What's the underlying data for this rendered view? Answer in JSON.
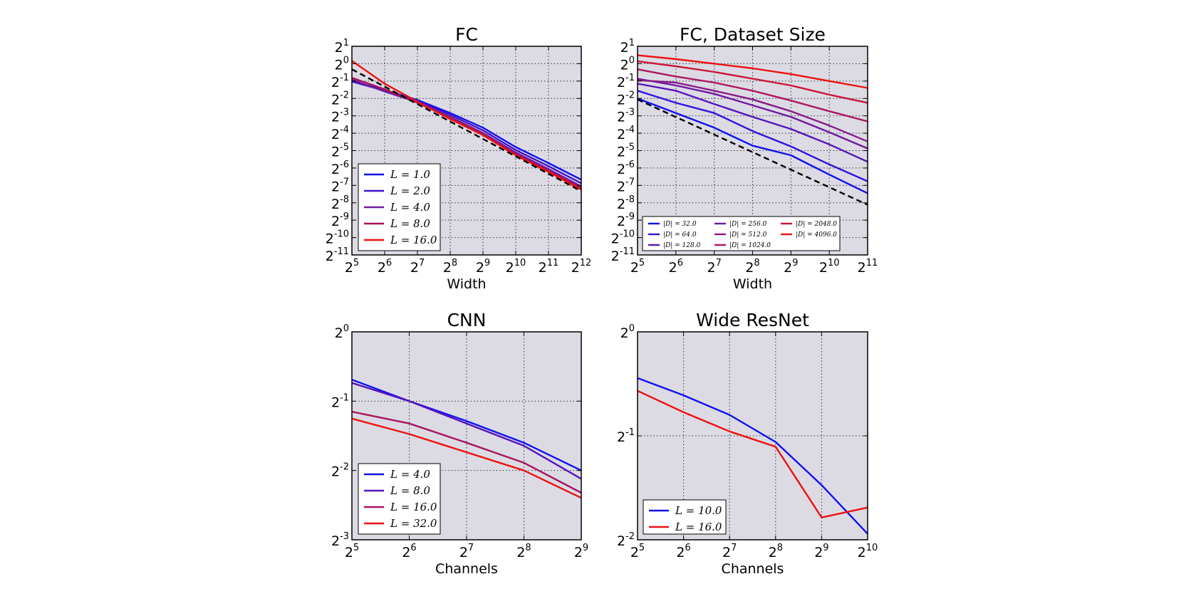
{
  "chart_data": [
    {
      "id": "fc",
      "type": "line",
      "title": "FC",
      "xlabel": "Width",
      "ylabel": "",
      "x_scale": "log2",
      "y_scale": "log2",
      "xlim": [
        32,
        4096
      ],
      "ylim": [
        0.00048828125,
        2
      ],
      "x_ticks": [
        5,
        6,
        7,
        8,
        9,
        10,
        11,
        12
      ],
      "y_ticks": [
        1,
        0,
        -1,
        -2,
        -3,
        -4,
        -5,
        -6,
        -7,
        -8,
        -9,
        -10,
        -11
      ],
      "tick_base": "2",
      "grid": true,
      "legend_position": "lower-left",
      "series": [
        {
          "name": "L = 1.0",
          "color": "#1111ee",
          "x": [
            32,
            64,
            128,
            256,
            512,
            1024,
            2048,
            4096
          ],
          "y": [
            0.5,
            0.35,
            0.235,
            0.14,
            0.078,
            0.036,
            0.019,
            0.0098
          ]
        },
        {
          "name": "L = 2.0",
          "color": "#4411cc",
          "x": [
            32,
            64,
            128,
            256,
            512,
            1024,
            2048,
            4096
          ],
          "y": [
            0.49,
            0.34,
            0.227,
            0.13,
            0.07,
            0.032,
            0.0168,
            0.0085
          ]
        },
        {
          "name": "L = 4.0",
          "color": "#6f1aa0",
          "x": [
            32,
            64,
            128,
            256,
            512,
            1024,
            2048,
            4096
          ],
          "y": [
            0.53,
            0.33,
            0.215,
            0.12,
            0.063,
            0.029,
            0.015,
            0.0075
          ]
        },
        {
          "name": "L = 8.0",
          "color": "#aa1155",
          "x": [
            32,
            64,
            128,
            256,
            512,
            1024,
            2048,
            4096
          ],
          "y": [
            0.57,
            0.36,
            0.21,
            0.115,
            0.06,
            0.027,
            0.014,
            0.007
          ]
        },
        {
          "name": "L = 16.0",
          "color": "#ee1111",
          "x": [
            32,
            64,
            128,
            256,
            512,
            1024,
            2048,
            4096
          ],
          "y": [
            1.12,
            0.45,
            0.22,
            0.11,
            0.058,
            0.026,
            0.0133,
            0.0066
          ]
        },
        {
          "name": "",
          "color": "#000000",
          "dashed": true,
          "x": [
            32,
            4096
          ],
          "y": [
            0.8,
            0.0062
          ]
        }
      ]
    },
    {
      "id": "fc-dataset-size",
      "type": "line",
      "title": "FC, Dataset Size",
      "xlabel": "Width",
      "ylabel": "",
      "x_scale": "log2",
      "y_scale": "log2",
      "xlim": [
        32,
        2048
      ],
      "ylim": [
        0.00048828125,
        2
      ],
      "x_ticks": [
        5,
        6,
        7,
        8,
        9,
        10,
        11
      ],
      "y_ticks": [
        1,
        0,
        -1,
        -2,
        -3,
        -4,
        -5,
        -6,
        -7,
        -8,
        -9,
        -10,
        -11
      ],
      "tick_base": "2",
      "grid": true,
      "legend_position": "lower-left",
      "legend_columns": 3,
      "series": [
        {
          "name": "|D| = 32.0",
          "color": "#1111ee",
          "x": [
            32,
            64,
            128,
            256,
            512,
            1024,
            2048
          ],
          "y": [
            0.25,
            0.14,
            0.078,
            0.038,
            0.026,
            0.012,
            0.0057
          ]
        },
        {
          "name": "|D| = 64.0",
          "color": "#3311dd",
          "x": [
            32,
            64,
            128,
            256,
            512,
            1024,
            2048
          ],
          "y": [
            0.34,
            0.21,
            0.14,
            0.068,
            0.037,
            0.018,
            0.0092
          ]
        },
        {
          "name": "|D| = 128.0",
          "color": "#5514bb",
          "x": [
            32,
            64,
            128,
            256,
            512,
            1024,
            2048
          ],
          "y": [
            0.45,
            0.34,
            0.2,
            0.12,
            0.074,
            0.04,
            0.02
          ]
        },
        {
          "name": "|D| = 256.0",
          "color": "#7018a0",
          "x": [
            32,
            64,
            128,
            256,
            512,
            1024,
            2048
          ],
          "y": [
            0.55,
            0.42,
            0.3,
            0.19,
            0.12,
            0.065,
            0.034
          ]
        },
        {
          "name": "|D| = 512.0",
          "color": "#8a1a88",
          "x": [
            32,
            64,
            128,
            256,
            512,
            1024,
            2048
          ],
          "y": [
            0.52,
            0.47,
            0.34,
            0.24,
            0.15,
            0.085,
            0.045
          ]
        },
        {
          "name": "|D| = 1024.0",
          "color": "#aa1660",
          "x": [
            32,
            64,
            128,
            256,
            512,
            1024,
            2048
          ],
          "y": [
            0.8,
            0.6,
            0.47,
            0.34,
            0.23,
            0.15,
            0.1
          ]
        },
        {
          "name": "|D| = 2048.0",
          "color": "#cc1238",
          "x": [
            32,
            64,
            128,
            256,
            512,
            1024,
            2048
          ],
          "y": [
            1.1,
            0.9,
            0.72,
            0.55,
            0.42,
            0.29,
            0.21
          ]
        },
        {
          "name": "|D| = 4096.0",
          "color": "#ee1111",
          "x": [
            32,
            64,
            128,
            256,
            512,
            1024,
            2048
          ],
          "y": [
            1.4,
            1.2,
            1.0,
            0.83,
            0.66,
            0.5,
            0.38
          ]
        },
        {
          "name": "",
          "color": "#000000",
          "dashed": true,
          "x": [
            32,
            2048
          ],
          "y": [
            0.24,
            0.0036
          ]
        }
      ]
    },
    {
      "id": "cnn",
      "type": "line",
      "title": "CNN",
      "xlabel": "Channels",
      "ylabel": "",
      "x_scale": "log2",
      "y_scale": "log2",
      "xlim": [
        32,
        512
      ],
      "ylim": [
        0.125,
        1
      ],
      "x_ticks": [
        5,
        6,
        7,
        8,
        9
      ],
      "y_ticks": [
        0,
        -1,
        -2,
        -3
      ],
      "tick_base": "2",
      "grid": true,
      "legend_position": "lower-left",
      "series": [
        {
          "name": "L = 4.0",
          "color": "#1111ee",
          "x": [
            32,
            64,
            128,
            256,
            512
          ],
          "y": [
            0.62,
            0.5,
            0.41,
            0.33,
            0.25
          ]
        },
        {
          "name": "L = 8.0",
          "color": "#5514bb",
          "x": [
            32,
            64,
            128,
            256,
            512
          ],
          "y": [
            0.6,
            0.5,
            0.4,
            0.32,
            0.23
          ]
        },
        {
          "name": "L = 16.0",
          "color": "#aa1660",
          "x": [
            32,
            64,
            128,
            256,
            512
          ],
          "y": [
            0.45,
            0.4,
            0.33,
            0.27,
            0.2
          ]
        },
        {
          "name": "L = 32.0",
          "color": "#ee1111",
          "x": [
            32,
            64,
            128,
            256,
            512
          ],
          "y": [
            0.42,
            0.36,
            0.3,
            0.25,
            0.19
          ]
        }
      ]
    },
    {
      "id": "wide-resnet",
      "type": "line",
      "title": "Wide ResNet",
      "xlabel": "Channels",
      "ylabel": "",
      "x_scale": "log2",
      "y_scale": "log2",
      "xlim": [
        32,
        1024
      ],
      "ylim": [
        0.25,
        1
      ],
      "x_ticks": [
        5,
        6,
        7,
        8,
        9,
        10
      ],
      "y_ticks": [
        0,
        -1,
        -2
      ],
      "tick_base": "2",
      "grid": true,
      "legend_position": "lower-left",
      "series": [
        {
          "name": "L = 10.0",
          "color": "#1111ee",
          "x": [
            32,
            64,
            128,
            256,
            512,
            1024
          ],
          "y": [
            0.735,
            0.655,
            0.575,
            0.48,
            0.36,
            0.26
          ]
        },
        {
          "name": "L = 16.0",
          "color": "#ee1111",
          "x": [
            32,
            64,
            128,
            256,
            512,
            1024
          ],
          "y": [
            0.675,
            0.585,
            0.515,
            0.465,
            0.29,
            0.31
          ]
        }
      ]
    }
  ]
}
